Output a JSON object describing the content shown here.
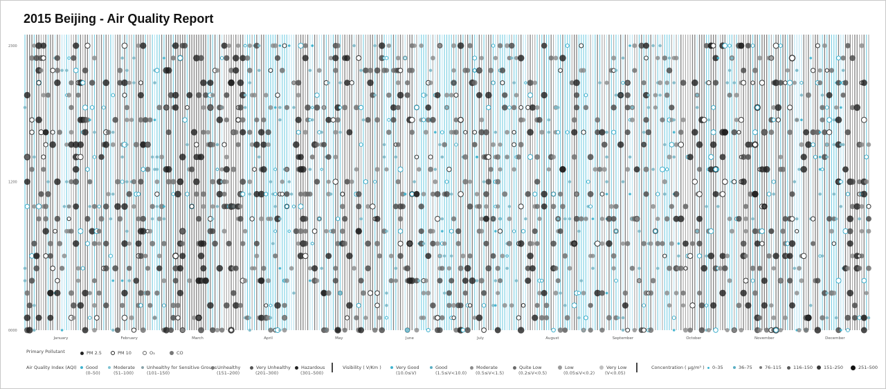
{
  "title": "2015 Beijing - Air Quality Report",
  "chart_data": {
    "type": "scatter",
    "title": "2015 Beijing - Air Quality Report",
    "year": 2015,
    "x_axis": {
      "type": "date",
      "domain": [
        "2015-01-01",
        "2015-12-31"
      ],
      "tick_labels": [
        "January",
        "February",
        "March",
        "April",
        "May",
        "June",
        "July",
        "August",
        "September",
        "October",
        "November",
        "December"
      ]
    },
    "y_axis": {
      "tick_labels": [
        "0000",
        "1200",
        "2300"
      ],
      "range": [
        "0000",
        "2300"
      ]
    },
    "grid": false,
    "encoding": {
      "line_per_day": "visibility (color shade)",
      "dot_position": "hour of day",
      "dot_size_and_shade": "pollutant concentration",
      "dot_style": "primary pollutant"
    }
  },
  "legend": {
    "pollutant": {
      "label": "Primary Pollutant",
      "items": [
        {
          "label": "PM 2.5",
          "style": "filled-dark"
        },
        {
          "label": "PM 10",
          "style": "ring-dark"
        },
        {
          "label": "O₃",
          "style": "ring-light"
        },
        {
          "label": "CO",
          "style": "filled-gray"
        }
      ]
    },
    "aqi": {
      "label": "Air Quality Index (AQI)",
      "items": [
        {
          "label": "Good",
          "range": "(0–50)",
          "color": "#3fb3cf"
        },
        {
          "label": "Moderate",
          "range": "(51–100)",
          "color": "#7fc3d3"
        },
        {
          "label": "Unhealthy for Sensitive Groups",
          "range": "(101–150)",
          "color": "#8aa2a8"
        },
        {
          "label": "Unhealthy",
          "range": "(151–200)",
          "color": "#777777"
        },
        {
          "label": "Very Unhealthy",
          "range": "(201–300)",
          "color": "#555555"
        },
        {
          "label": "Hazardous",
          "range": "(301–500)",
          "color": "#222222"
        }
      ]
    },
    "visibility": {
      "label": "Visibility ( V/Km )",
      "items": [
        {
          "label": "Very Good",
          "range": "(10.0≤V)",
          "color": "#3fb3cf"
        },
        {
          "label": "Good",
          "range": "(1.5≤V<10.0)",
          "color": "#5aaec3"
        },
        {
          "label": "Moderate",
          "range": "(0.5≤V<1.5)",
          "color": "#8a8a8a"
        },
        {
          "label": "Quite Low",
          "range": "(0.2≤V<0.5)",
          "color": "#6a6a6a"
        },
        {
          "label": "Low",
          "range": "(0.05≤V<0.2)",
          "color": "#9a9a9a"
        },
        {
          "label": "Very Low",
          "range": "(V<0.05)",
          "color": "#c0c0c0"
        }
      ]
    },
    "concentration": {
      "label": "Concentration ( µg/m³ )",
      "items": [
        {
          "label": "0–35",
          "color": "#3fb3cf"
        },
        {
          "label": "36–75",
          "color": "#5aaec3"
        },
        {
          "label": "76–115",
          "color": "#7a7a7a"
        },
        {
          "label": "116–150",
          "color": "#5a5a5a"
        },
        {
          "label": "151–250",
          "color": "#3a3a3a"
        },
        {
          "label": "251–500",
          "color": "#111111"
        }
      ]
    }
  }
}
